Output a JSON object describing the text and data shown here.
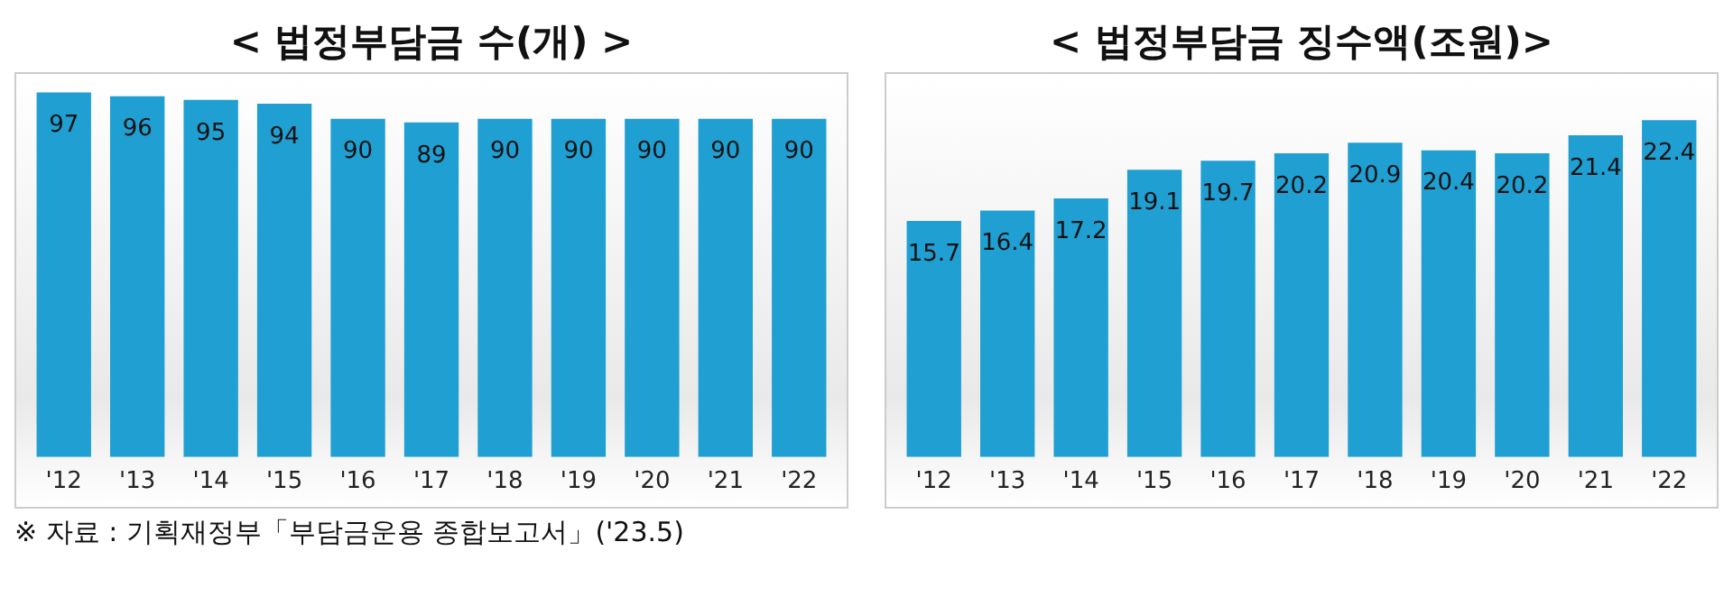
{
  "chart_data": [
    {
      "type": "bar",
      "title": "< 법정부담금 수(개) >",
      "categories": [
        "'12",
        "'13",
        "'14",
        "'15",
        "'16",
        "'17",
        "'18",
        "'19",
        "'20",
        "'21",
        "'22"
      ],
      "values": [
        97,
        96,
        95,
        94,
        90,
        89,
        90,
        90,
        90,
        90,
        90
      ],
      "color": "#1f9fd2",
      "data_labels": true,
      "grid": false,
      "legend": false,
      "annotations": [
        "※ 자료 : 기획재정부「부담금운용 종합보고서」('23.5)"
      ]
    },
    {
      "type": "bar",
      "title": "< 법정부담금 징수액(조원)>",
      "categories": [
        "'12",
        "'13",
        "'14",
        "'15",
        "'16",
        "'17",
        "'18",
        "'19",
        "'20",
        "'21",
        "'22"
      ],
      "values": [
        15.7,
        16.4,
        17.2,
        19.1,
        19.7,
        20.2,
        20.9,
        20.4,
        20.2,
        21.4,
        22.4
      ],
      "color": "#1f9fd2",
      "data_labels": true,
      "grid": false,
      "legend": false
    }
  ]
}
